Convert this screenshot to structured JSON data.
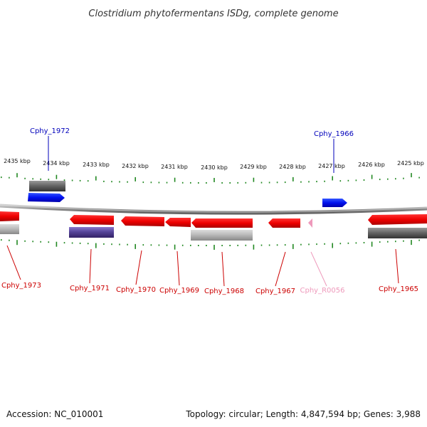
{
  "title": "Clostridium phytofermentans ISDg, complete genome",
  "footer": {
    "accession": "Accession: NC_010001",
    "summary": "Topology: circular; Length: 4,847,594 bp; Genes: 3,988"
  },
  "scale_labels": [
    "2435 kbp",
    "2434 kbp",
    "2433 kbp",
    "2432 kbp",
    "2431 kbp",
    "2430 kbp",
    "2429 kbp",
    "2428 kbp",
    "2427 kbp",
    "2426 kbp",
    "2425 kbp"
  ],
  "colors": {
    "cds": "#dd0000",
    "cds_plus": "#0000dd",
    "rna": "#ee99bb",
    "ticks": "#228822",
    "backbone": "#888888",
    "label_blue": "#0000bb",
    "label_red": "#cc0000",
    "label_pink": "#ee99bb"
  },
  "gene_labels": [
    {
      "id": "cphy-1972",
      "text": "Cphy_1972",
      "color": "blue"
    },
    {
      "id": "cphy-1966",
      "text": "Cphy_1966",
      "color": "blue"
    },
    {
      "id": "cphy-1973",
      "text": "Cphy_1973",
      "color": "red"
    },
    {
      "id": "cphy-1971",
      "text": "Cphy_1971",
      "color": "red"
    },
    {
      "id": "cphy-1970",
      "text": "Cphy_1970",
      "color": "red"
    },
    {
      "id": "cphy-1969",
      "text": "Cphy_1969",
      "color": "red"
    },
    {
      "id": "cphy-1968",
      "text": "Cphy_1968",
      "color": "red"
    },
    {
      "id": "cphy-1967",
      "text": "Cphy_1967",
      "color": "red"
    },
    {
      "id": "cphy-r0056",
      "text": "Cphy_R0056",
      "color": "pink"
    },
    {
      "id": "cphy-1965",
      "text": "Cphy_1965",
      "color": "red"
    }
  ]
}
